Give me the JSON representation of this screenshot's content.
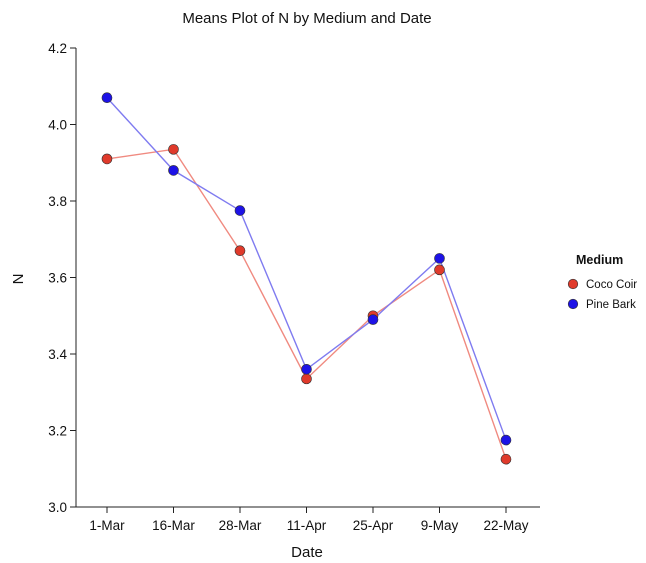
{
  "chart_data": {
    "type": "line",
    "title": "Means Plot of N by Medium and Date",
    "xlabel": "Date",
    "ylabel": "N",
    "categories": [
      "1-Mar",
      "16-Mar",
      "28-Mar",
      "11-Apr",
      "25-Apr",
      "9-May",
      "22-May"
    ],
    "ylim": [
      3.0,
      4.2
    ],
    "yticks": [
      "3.0",
      "3.2",
      "3.4",
      "3.6",
      "3.8",
      "4.0",
      "4.2"
    ],
    "grid": false,
    "legend": {
      "title": "Medium",
      "position": "right"
    },
    "series": [
      {
        "name": "Coco Coir",
        "marker_color": "#e03a2b",
        "line_color": "#f08a80",
        "values": [
          3.91,
          3.935,
          3.67,
          3.335,
          3.5,
          3.62,
          3.125
        ]
      },
      {
        "name": "Pine Bark",
        "marker_color": "#1d12e6",
        "line_color": "#7f7bf0",
        "values": [
          4.07,
          3.88,
          3.775,
          3.36,
          3.49,
          3.65,
          3.175
        ]
      }
    ]
  }
}
